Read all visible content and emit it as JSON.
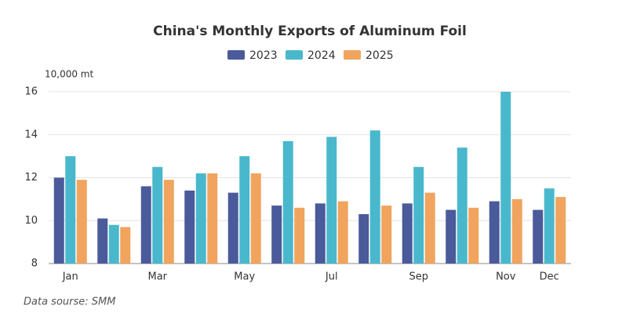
{
  "chart_data": {
    "type": "bar",
    "title": "China's Monthly Exports of Aluminum Foil",
    "y_unit": "10,000 mt",
    "source": "Data sourse: SMM",
    "categories": [
      "Jan",
      null,
      "Mar",
      null,
      "May",
      null,
      "Jul",
      null,
      "Sep",
      null,
      "Nov",
      "Dec"
    ],
    "series": [
      {
        "name": "2023",
        "color": "#4a5a9a",
        "values": [
          12.0,
          10.1,
          11.6,
          11.4,
          11.3,
          10.7,
          10.8,
          10.3,
          10.8,
          10.5,
          10.9,
          10.5
        ]
      },
      {
        "name": "2024",
        "color": "#4ab8cc",
        "values": [
          13.0,
          9.8,
          12.5,
          12.2,
          13.0,
          13.7,
          13.9,
          14.2,
          12.5,
          13.4,
          16.0,
          11.5
        ]
      },
      {
        "name": "2025",
        "color": "#f0a45e",
        "values": [
          11.9,
          9.7,
          11.9,
          12.2,
          12.2,
          10.6,
          10.9,
          10.7,
          11.3,
          10.6,
          11.0,
          11.1
        ]
      }
    ],
    "ylim": [
      8,
      16
    ],
    "yticks": [
      8,
      10,
      12,
      14,
      16
    ],
    "grid": true
  }
}
